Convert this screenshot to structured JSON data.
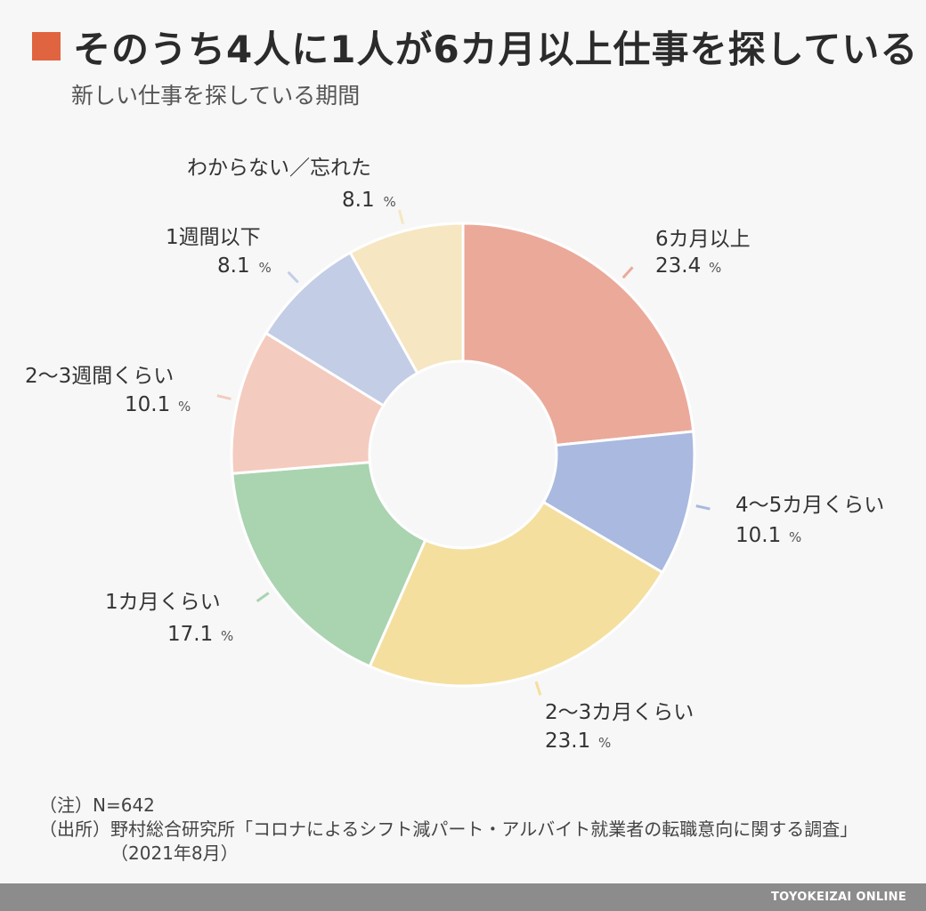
{
  "title": "そのうち4人に1人が6カ月以上仕事を探している",
  "subtitle": "新しい仕事を探している期間",
  "colors": {
    "title_marker": "#e0643f",
    "footer": "#8c8c8c"
  },
  "chart_data": {
    "type": "pie",
    "variant": "donut",
    "title": "そのうち4人に1人が6カ月以上仕事を探している",
    "subtitle": "新しい仕事を探している期間",
    "unit": "%",
    "slices": [
      {
        "label": "6カ月以上",
        "value": 23.4,
        "value_label": "23.4",
        "color": "#eba99a"
      },
      {
        "label": "4〜5カ月くらい",
        "value": 10.1,
        "value_label": "10.1",
        "color": "#a9b9df"
      },
      {
        "label": "2〜3カ月くらい",
        "value": 23.1,
        "value_label": "23.1",
        "color": "#f4df9f"
      },
      {
        "label": "1カ月くらい",
        "value": 17.1,
        "value_label": "17.1",
        "color": "#aad3b0"
      },
      {
        "label": "2〜3週間くらい",
        "value": 10.1,
        "value_label": "10.1",
        "color": "#f4cbbf"
      },
      {
        "label": "1週間以下",
        "value": 8.1,
        "value_label": "8.1",
        "color": "#c3cde6"
      },
      {
        "label": "わからない／忘れた",
        "value": 8.1,
        "value_label": "8.1",
        "color": "#f6e6c1"
      }
    ]
  },
  "notes": [
    {
      "label": "（注）",
      "text": "N=642"
    },
    {
      "label": "（出所）",
      "text": "野村総合研究所「コロナによるシフト減パート・アルバイト就業者の転職意向に関する調査」（2021年8月）"
    }
  ],
  "footer": {
    "brand": "TOYOKEIZAI ONLINE"
  }
}
